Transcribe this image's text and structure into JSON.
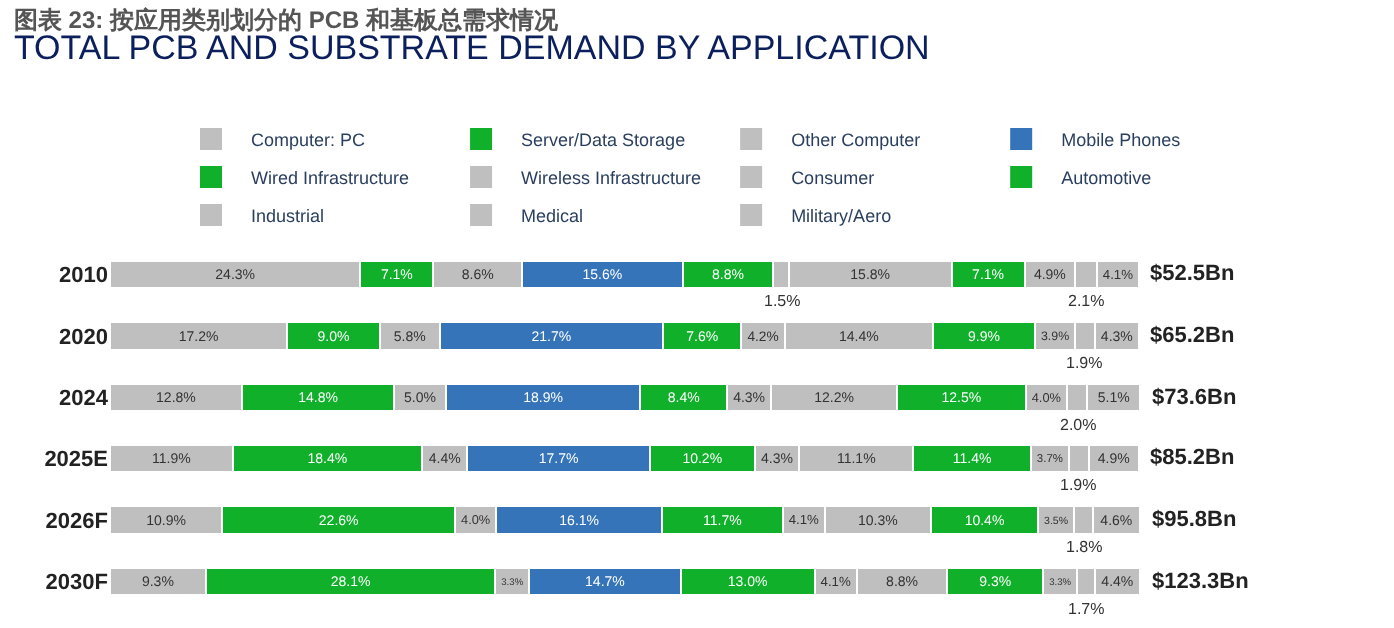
{
  "chart_data": {
    "type": "bar",
    "orientation": "horizontal",
    "stacked": true,
    "title": "图表 23: 按应用类别划分的 PCB 和基板总需求情况",
    "subtitle": "TOTAL PCB AND SUBSTRATE DEMAND BY APPLICATION",
    "categories": [
      "2010",
      "2020",
      "2024",
      "2025E",
      "2026F",
      "2030F"
    ],
    "series": [
      {
        "name": "Computer: PC",
        "color": "#bfbfbf",
        "values": [
          24.3,
          17.2,
          12.8,
          11.9,
          10.9,
          9.3
        ],
        "value_labels": [
          "24.3%",
          "17.2%",
          "12.8%",
          "11.9%",
          "10.9%",
          "9.3%"
        ]
      },
      {
        "name": "Server/Data Storage",
        "color": "#10b02a",
        "values": [
          7.1,
          9.0,
          14.8,
          18.4,
          22.6,
          28.1
        ],
        "value_labels": [
          "7.1%",
          "9.0%",
          "14.8%",
          "18.4%",
          "22.6%",
          "28.1%"
        ]
      },
      {
        "name": "Other Computer",
        "color": "#bfbfbf",
        "values": [
          8.6,
          5.8,
          5.0,
          4.4,
          4.0,
          3.3
        ],
        "value_labels": [
          "8.6%",
          "5.8%",
          "5.0%",
          "4.4%",
          "4.0%",
          "3.3%"
        ]
      },
      {
        "name": "Mobile Phones",
        "color": "#3574b8",
        "values": [
          15.6,
          21.7,
          18.9,
          17.7,
          16.1,
          14.7
        ],
        "value_labels": [
          "15.6%",
          "21.7%",
          "18.9%",
          "17.7%",
          "16.1%",
          "14.7%"
        ]
      },
      {
        "name": "Wired Infrastructure",
        "color": "#10b02a",
        "values": [
          8.8,
          7.6,
          8.4,
          10.2,
          11.7,
          13.0
        ],
        "value_labels": [
          "8.8%",
          "7.6%",
          "8.4%",
          "10.2%",
          "11.7%",
          "13.0%"
        ]
      },
      {
        "name": "Wireless Infrastructure",
        "color": "#bfbfbf",
        "values": [
          1.5,
          4.2,
          4.3,
          4.3,
          4.1,
          4.1
        ],
        "value_labels": [
          "1.5%",
          "4.2%",
          "4.3%",
          "4.3%",
          "4.1%",
          "4.1%"
        ]
      },
      {
        "name": "Consumer",
        "color": "#bfbfbf",
        "values": [
          15.8,
          14.4,
          12.2,
          11.1,
          10.3,
          8.8
        ],
        "value_labels": [
          "15.8%",
          "14.4%",
          "12.2%",
          "11.1%",
          "10.3%",
          "8.8%"
        ]
      },
      {
        "name": "Automotive",
        "color": "#10b02a",
        "values": [
          7.1,
          9.9,
          12.5,
          11.4,
          10.4,
          9.3
        ],
        "value_labels": [
          "7.1%",
          "9.9%",
          "12.5%",
          "11.4%",
          "10.4%",
          "9.3%"
        ]
      },
      {
        "name": "Industrial",
        "color": "#bfbfbf",
        "values": [
          4.9,
          3.9,
          4.0,
          3.7,
          3.5,
          3.3
        ],
        "value_labels": [
          "4.9%",
          "3.9%",
          "4.0%",
          "3.7%",
          "3.5%",
          "3.3%"
        ]
      },
      {
        "name": "Medical",
        "color": "#bfbfbf",
        "values": [
          2.1,
          1.9,
          2.0,
          1.9,
          1.8,
          1.7
        ],
        "value_labels": [
          "2.1%",
          "1.9%",
          "2.0%",
          "1.9%",
          "1.8%",
          "1.7%"
        ]
      },
      {
        "name": "Military/Aero",
        "color": "#bfbfbf",
        "values": [
          4.1,
          4.3,
          5.1,
          4.9,
          4.6,
          4.4
        ],
        "value_labels": [
          "4.1%",
          "4.3%",
          "5.1%",
          "4.9%",
          "4.6%",
          "4.4%"
        ]
      }
    ],
    "annotations": [
      "$52.5Bn",
      "$65.2Bn",
      "$73.6Bn",
      "$85.2Bn",
      "$95.8Bn",
      "$123.3Bn"
    ],
    "legend": "top",
    "tick_labels": "y"
  }
}
